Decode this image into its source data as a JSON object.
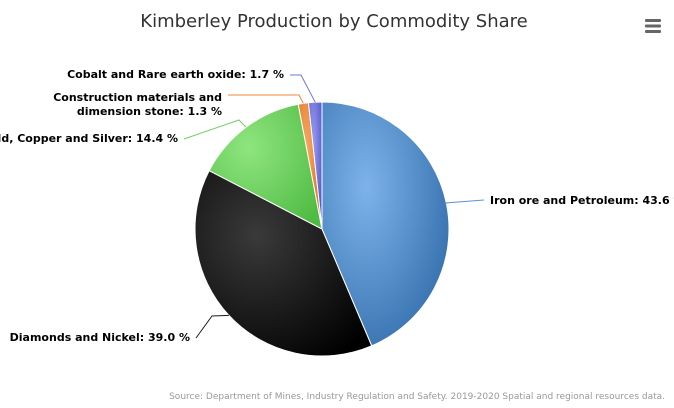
{
  "chart_data": {
    "type": "pie",
    "title": "Kimberley Production by Commodity Share",
    "unit": "%",
    "slices": [
      {
        "name": "Iron ore and Petroleum",
        "value": 43.6,
        "color": "#5b93cf"
      },
      {
        "name": "Diamonds and Nickel",
        "value": 39.0,
        "color": "#1d1d1d"
      },
      {
        "name": "Gold, Copper and Silver",
        "value": 14.4,
        "color": "#6fd160"
      },
      {
        "name": "Construction materials and dimension stone",
        "value": 1.3,
        "color": "#f0883a"
      },
      {
        "name": "Cobalt and Rare earth oxide",
        "value": 1.7,
        "color": "#6f73e0"
      }
    ],
    "credit": "Source: Department of Mines, Industry Regulation and Safety. 2019-2020 Spatial and regional resources data."
  },
  "menu": {
    "icon": "hamburger-menu-icon"
  }
}
